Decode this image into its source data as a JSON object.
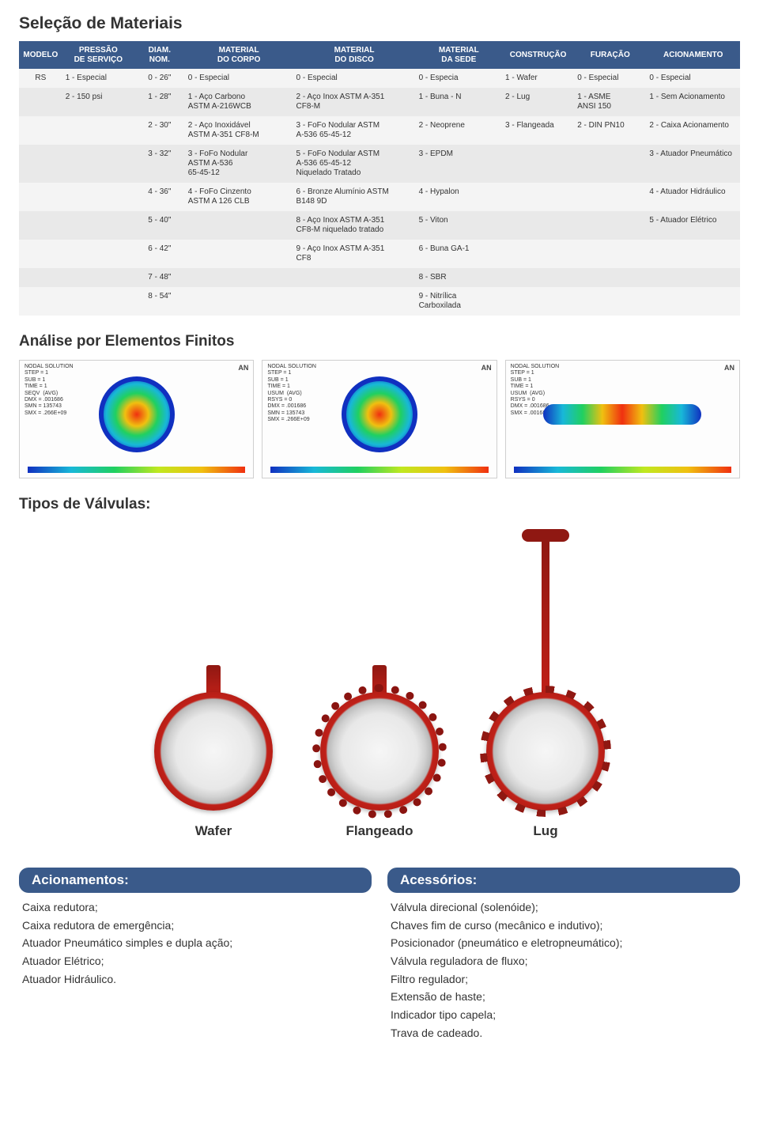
{
  "colors": {
    "header_bg": "#3a5a8a",
    "header_text": "#ffffff",
    "row_bg": "#f4f4f4",
    "row_alt_bg": "#e9e9e9",
    "valve_red": "#c02018",
    "valve_red_dark": "#8f1812"
  },
  "sections": {
    "materials_title": "Seleção de Materiais",
    "fea_title": "Análise por Elementos Finitos",
    "valve_types_title": "Tipos de Válvulas:"
  },
  "materials_table": {
    "headers": {
      "modelo": "MODELO",
      "pressao": "PRESSÃO\nDE SERVIÇO",
      "diam": "DIAM.\nNOM.",
      "corpo": "MATERIAL\nDO CORPO",
      "disco": "MATERIAL\nDO DISCO",
      "sede": "MATERIAL\nDA SEDE",
      "construcao": "CONSTRUÇÃO",
      "furacao": "FURAÇÃO",
      "acionamento": "ACIONAMENTO"
    },
    "col_widths_pct": [
      6,
      10,
      7,
      15,
      17,
      12,
      10,
      10,
      13
    ],
    "rows": [
      [
        "RS",
        "1 - Especial",
        "0 - 26\"",
        "0 - Especial",
        "0 - Especial",
        "0 - Especia",
        "1 - Wafer",
        "0 - Especial",
        "0 - Especial"
      ],
      [
        "",
        "2 - 150 psi",
        "1 - 28\"",
        "1 - Aço Carbono\nASTM A-216WCB",
        "2 - Aço Inox ASTM A-351\nCF8-M",
        "1 - Buna - N",
        "2 - Lug",
        "1 - ASME\nANSI 150",
        "1 - Sem Acionamento"
      ],
      [
        "",
        "",
        "2 - 30\"",
        "2 - Aço Inoxidável\nASTM A-351 CF8-M",
        "3 - FoFo Nodular ASTM\nA-536 65-45-12",
        "2 - Neoprene",
        "3 - Flangeada",
        "2 - DIN PN10",
        "2 - Caixa Acionamento"
      ],
      [
        "",
        "",
        "3 - 32\"",
        "3 - FoFo Nodular\nASTM A-536\n65-45-12",
        "5 - FoFo Nodular ASTM\nA-536 65-45-12\nNiquelado Tratado",
        "3 - EPDM",
        "",
        "",
        "3 - Atuador Pneumático"
      ],
      [
        "",
        "",
        "4 - 36\"",
        "4 - FoFo Cinzento\nASTM A 126 CLB",
        "6 - Bronze Alumínio ASTM\nB148 9D",
        "4 - Hypalon",
        "",
        "",
        "4 - Atuador Hidráulico"
      ],
      [
        "",
        "",
        "5 - 40\"",
        "",
        "8 - Aço Inox ASTM A-351\nCF8-M niquelado tratado",
        "5 - Viton",
        "",
        "",
        "5 - Atuador Elétrico"
      ],
      [
        "",
        "",
        "6 - 42\"",
        "",
        "9 - Aço Inox ASTM A-351\nCF8",
        "6 - Buna GA-1",
        "",
        "",
        ""
      ],
      [
        "",
        "",
        "7 - 48\"",
        "",
        "",
        "8 - SBR",
        "",
        "",
        ""
      ],
      [
        "",
        "",
        "8 - 54\"",
        "",
        "",
        "9 - Nitrílica\nCarboxilada",
        "",
        "",
        ""
      ]
    ]
  },
  "fea": {
    "plots": [
      {
        "label": "NODAL SOLUTION\nSTEP = 1\nSUB = 1\nTIME = 1\nSEQV  (AVG)\nDMX = .001686\nSMN = 135743\nSMX = .266E+09",
        "an": "AN"
      },
      {
        "label": "NODAL SOLUTION\nSTEP = 1\nSUB = 1\nTIME = 1\nUSUM  (AVG)\nRSYS = 0\nDMX = .001686\nSMN = 135743\nSMX = .266E+09",
        "an": "AN"
      },
      {
        "label": "NODAL SOLUTION\nSTEP = 1\nSUB = 1\nTIME = 1\nUSUM  (AVG)\nRSYS = 0\nDMX = .001686\nSMX = .001686",
        "an": "AN"
      }
    ],
    "colorbar_stops": [
      "#1030c0",
      "#18b8d8",
      "#20d060",
      "#c0e820",
      "#f0c010",
      "#f03010"
    ]
  },
  "valves": {
    "items": [
      {
        "label": "Wafer",
        "type": "wafer",
        "stem": "short"
      },
      {
        "label": "Flangeado",
        "type": "flange",
        "stem": "short"
      },
      {
        "label": "Lug",
        "type": "lug",
        "stem": "tall"
      }
    ]
  },
  "panels": {
    "left": {
      "heading": "Acionamentos:",
      "items": [
        "Caixa redutora;",
        "Caixa redutora de emergência;",
        "Atuador Pneumático simples e dupla ação;",
        "Atuador Elétrico;",
        "Atuador Hidráulico."
      ]
    },
    "right": {
      "heading": "Acessórios:",
      "items": [
        "Válvula direcional (solenóide);",
        "Chaves fim de curso (mecânico e indutivo);",
        "Posicionador (pneumático e eletropneumático);",
        "Válvula reguladora de fluxo;",
        "Filtro regulador;",
        "Extensão de haste;",
        "Indicador tipo capela;",
        "Trava de cadeado."
      ]
    }
  }
}
